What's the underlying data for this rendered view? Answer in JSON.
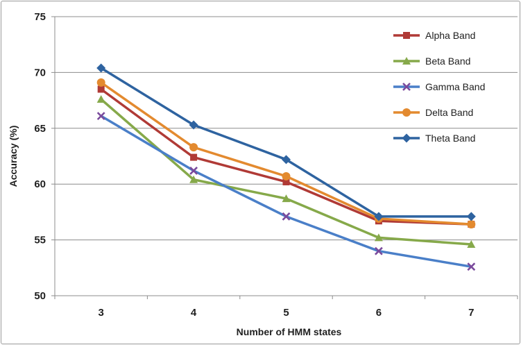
{
  "chart_data": {
    "type": "line",
    "title": "",
    "xlabel": "Number of HMM states",
    "ylabel": "Accuracy  (%)",
    "categories": [
      "3",
      "4",
      "5",
      "6",
      "7"
    ],
    "ylim": [
      50,
      75
    ],
    "yticks": [
      50,
      55,
      60,
      65,
      70,
      75
    ],
    "grid": true,
    "legend_position": "right",
    "series": [
      {
        "name": "Alpha Band",
        "color": "#b03a36",
        "marker": "square",
        "values": [
          68.5,
          62.4,
          60.2,
          56.7,
          56.4
        ]
      },
      {
        "name": "Beta Band",
        "color": "#86a94a",
        "marker": "triangle",
        "values": [
          67.6,
          60.4,
          58.7,
          55.2,
          54.6
        ]
      },
      {
        "name": "Gamma Band",
        "color": "#4a7fc8",
        "marker": "x",
        "values": [
          66.1,
          61.2,
          57.1,
          54.0,
          52.6
        ]
      },
      {
        "name": "Delta Band",
        "color": "#e38a2f",
        "marker": "circle",
        "values": [
          69.1,
          63.3,
          60.7,
          56.9,
          56.4
        ]
      },
      {
        "name": "Theta Band",
        "color": "#2e63a0",
        "marker": "diamond",
        "values": [
          70.4,
          65.3,
          62.2,
          57.1,
          57.1
        ]
      }
    ]
  }
}
